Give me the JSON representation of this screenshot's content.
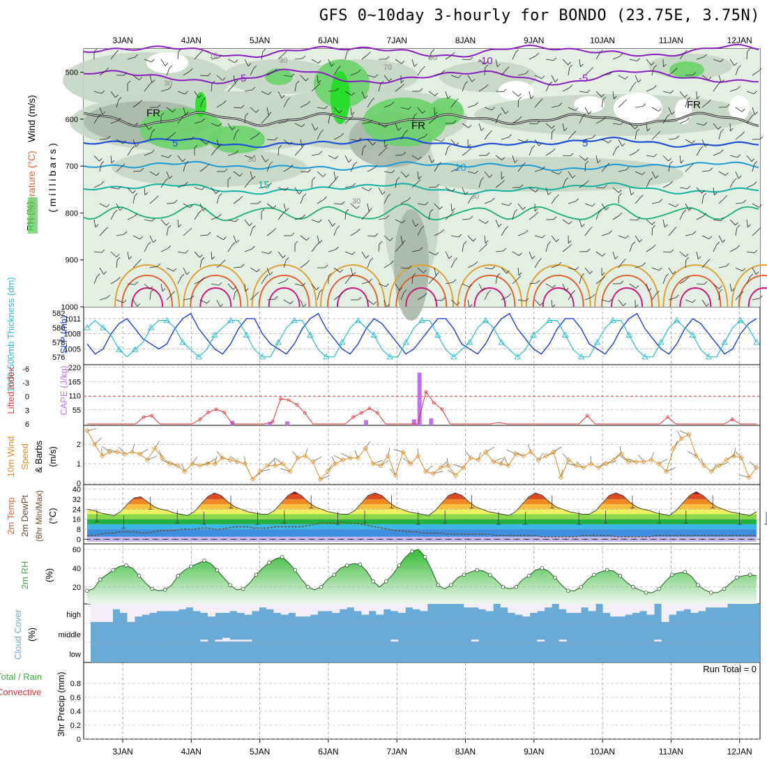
{
  "title": "GFS 0~10day 3-hourly for BONDO (23.75E, 3.75N)",
  "dates": [
    "3JAN",
    "4JAN",
    "5JAN",
    "6JAN",
    "7JAN",
    "8JAN",
    "9JAN",
    "10JAN",
    "11JAN",
    "12JAN"
  ],
  "colors": {
    "grid": "#999999",
    "rh_light": "#e3efe3",
    "rh_mid": "#c4d6c4",
    "rh_gray": "#a8b8a8",
    "rh_green": "#6ad36a",
    "rh_bright": "#22dd22",
    "purple": "#8a1dc0",
    "blue": "#1f4fd6",
    "lightblue": "#1c9ad6",
    "teal": "#14b0a0",
    "green_temp": "#18b070",
    "orange": "#e0a030",
    "orangered": "#e06030",
    "magenta": "#d0167a",
    "slp": "#1a3fd0",
    "thick": "#22bbcc",
    "li": "#e03030",
    "cape": "#c070f0",
    "wind": "#e08a20",
    "rh2m": "#3ab03a",
    "cloud": "#6aaad6",
    "cloud_clear": "#f3eef8"
  },
  "chart_data": [
    {
      "type": "contour",
      "panel": "upper-air",
      "ylabel_parts": [
        "RH (%)",
        "Temperature (°C)",
        "Wind (m/s)"
      ],
      "ylabel_unit": "( m i l l i b a r s )",
      "yticks": [
        500,
        600,
        700,
        800,
        900,
        1000
      ],
      "ylim": [
        1000,
        450
      ],
      "temperature_levels": [
        -10,
        -5,
        0,
        5,
        10,
        15,
        20,
        25,
        30
      ],
      "temperature_labels": [
        "-10",
        "-5",
        "FR",
        "5",
        "10",
        "15"
      ],
      "rh_labels": [
        "10",
        "30",
        "70",
        "90"
      ]
    },
    {
      "type": "line",
      "panel": "slp-thickness",
      "ylabel_left": "1000-500mb Thickness (dm)",
      "ylabel_right": "SLP (mb)",
      "yticks_left": [
        576,
        578,
        580,
        582
      ],
      "yticks_right": [
        1005,
        1008,
        1011
      ],
      "series": [
        {
          "name": "SLP",
          "values": [
            1006,
            1004,
            1005,
            1008,
            1010,
            1011,
            1009,
            1007,
            1006,
            1005,
            1006,
            1009,
            1011,
            1012,
            1009,
            1007,
            1005,
            1004,
            1006,
            1009,
            1011,
            1011,
            1008,
            1006,
            1005,
            1004,
            1006,
            1009,
            1011,
            1012,
            1009,
            1007,
            1005,
            1004,
            1006,
            1009,
            1011,
            1010,
            1008,
            1006,
            1004,
            1005,
            1007,
            1009,
            1011,
            1011,
            1009,
            1006,
            1005,
            1004,
            1006,
            1009,
            1011,
            1012,
            1009,
            1007,
            1005,
            1004,
            1006,
            1009,
            1011,
            1011,
            1009,
            1006,
            1005,
            1004,
            1006,
            1009,
            1011,
            1012,
            1009,
            1007,
            1005,
            1004,
            1006,
            1009,
            1011,
            1010,
            1008,
            1006,
            1004,
            1005,
            1008,
            1010,
            1011
          ]
        },
        {
          "name": "Thickness",
          "values": [
            580,
            581,
            580,
            579,
            577,
            576,
            577,
            578,
            580,
            581,
            581,
            580,
            578,
            577,
            576,
            577,
            579,
            580,
            581,
            581,
            579,
            577,
            576,
            576,
            578,
            580,
            581,
            581,
            579,
            577,
            576,
            576,
            578,
            580,
            581,
            580,
            579,
            577,
            576,
            576,
            578,
            580,
            581,
            581,
            579,
            577,
            576,
            577,
            578,
            580,
            581,
            580,
            578,
            577,
            576,
            577,
            579,
            580,
            581,
            581,
            579,
            577,
            576,
            576,
            578,
            580,
            581,
            581,
            579,
            577,
            576,
            576,
            578,
            580,
            581,
            580,
            579,
            577,
            576,
            576,
            578,
            580,
            581,
            580,
            578
          ]
        }
      ]
    },
    {
      "type": "bar+line",
      "panel": "lifted-cape",
      "ylabel_left": "Lifted Index",
      "ylabel_right": "CAPE (J/kg)",
      "yticks_left": [
        -6,
        -3,
        0,
        3,
        6
      ],
      "yticks_right": [
        55,
        110,
        165,
        220
      ],
      "series": [
        {
          "name": "Lifted Index",
          "values": [
            6,
            6,
            6,
            6,
            6,
            6,
            6,
            4.5,
            4.2,
            6,
            6,
            6,
            6,
            6,
            5,
            3.5,
            2.8,
            3.5,
            6,
            6,
            6,
            6,
            6,
            5.5,
            0.5,
            0.8,
            1.8,
            3.6,
            6,
            6,
            6,
            6,
            6,
            4.5,
            3.6,
            2.6,
            3.6,
            6,
            6,
            6,
            6,
            6,
            -1,
            1.4,
            2.8,
            6,
            6,
            6,
            6,
            6,
            6,
            5.7,
            6,
            6,
            6,
            6,
            6,
            6,
            6,
            6,
            6,
            6,
            4.2,
            6,
            6,
            6,
            6,
            6,
            6,
            6,
            6,
            6,
            4.5,
            6,
            6,
            6,
            6,
            6,
            6,
            6,
            5,
            6,
            6,
            6
          ]
        },
        {
          "name": "CAPE",
          "values": [
            0,
            0,
            0,
            0,
            0,
            0,
            0,
            0,
            0,
            0,
            0,
            0,
            0,
            0,
            0,
            0,
            0,
            0,
            0,
            0,
            0,
            0,
            0,
            0,
            0,
            0,
            0,
            0,
            0,
            0,
            0,
            0,
            0,
            0,
            0,
            0,
            0,
            0,
            0,
            0,
            0,
            0,
            0,
            0,
            0,
            0,
            0,
            0,
            0,
            0,
            0,
            0,
            0,
            0,
            0,
            0,
            0,
            0,
            0,
            0,
            0,
            0,
            0,
            0,
            0,
            0,
            0,
            0,
            0,
            0,
            0,
            0,
            0,
            0,
            0,
            0,
            0,
            0,
            0,
            0,
            0,
            0,
            0,
            0,
            0
          ]
        }
      ],
      "cape_bars": [
        [
          4.6,
          12
        ],
        [
          5.15,
          6
        ],
        [
          5.4,
          10
        ],
        [
          6.55,
          15
        ],
        [
          7.25,
          18
        ],
        [
          7.33,
          200
        ],
        [
          7.5,
          22
        ]
      ]
    },
    {
      "type": "line",
      "panel": "wind10m",
      "ylabel": "10m Wind Speed & Barbs (m/s)",
      "yticks": [
        0,
        1,
        2
      ],
      "series": [
        {
          "name": "Wind Speed",
          "values": [
            2.7,
            2.0,
            1.4,
            1.6,
            1.6,
            1.5,
            1.6,
            1.5,
            1.2,
            1.8,
            1.3,
            1.0,
            0.9,
            0.6,
            1.0,
            0.9,
            1.0,
            1.0,
            1.3,
            1.2,
            1.1,
            1.0,
            0.2,
            0.6,
            0.9,
            0.9,
            1.0,
            0.6,
            1.3,
            1.4,
            1.1,
            0.2,
            0.6,
            1.0,
            1.2,
            1.3,
            1.3,
            1.8,
            1.0,
            0.9,
            1.4,
            0.4,
            1.6,
            1.0,
            1.4,
            0.6,
            0.5,
            0.8,
            0.9,
            0.4,
            0.8,
            1.3,
            1.2,
            1.6,
            1.1,
            1.0,
            0.9,
            1.5,
            1.4,
            1.6,
            1.2,
            1.4,
            1.6,
            0.3,
            1.2,
            0.9,
            0.8,
            1.0,
            0.8,
            1.0,
            1.2,
            1.5,
            1.1,
            1.1,
            1.1,
            1.2,
            1.0,
            0.6,
            1.8,
            2.3,
            2.5,
            1.4,
            0.9,
            0.6,
            0.9,
            1.2,
            1.4,
            1.3,
            0.3,
            0.8
          ]
        }
      ]
    },
    {
      "type": "area",
      "panel": "temp2m",
      "ylabel": "2m Temp 2m DewPt (6hr Min/Max) (°C)",
      "yticks": [
        0,
        8,
        16,
        24,
        32,
        40
      ],
      "series": [
        {
          "name": "2m Temp",
          "values": [
            24,
            23,
            21,
            20,
            19,
            22,
            28,
            33,
            34,
            30,
            26,
            24,
            23,
            21,
            20,
            19,
            22,
            28,
            34,
            37,
            35,
            30,
            26,
            24,
            22,
            21,
            20,
            20,
            23,
            29,
            35,
            38,
            35,
            30,
            26,
            24,
            22,
            21,
            20,
            20,
            23,
            29,
            35,
            37,
            35,
            30,
            26,
            24,
            22,
            21,
            20,
            19,
            23,
            29,
            35,
            37,
            35,
            30,
            26,
            24,
            22,
            21,
            20,
            19,
            22,
            28,
            34,
            37,
            35,
            30,
            26,
            24,
            22,
            21,
            20,
            20,
            23,
            29,
            35,
            37,
            35,
            30,
            26,
            24,
            23,
            21,
            20,
            19,
            23,
            29,
            35,
            38,
            35,
            30,
            26,
            24,
            22,
            21,
            20,
            19,
            22
          ]
        },
        {
          "name": "2m DewPt",
          "values": [
            3,
            3,
            4,
            5,
            5,
            6,
            6,
            6,
            5,
            5,
            6,
            7,
            7,
            7,
            8,
            8,
            8,
            9,
            9,
            8,
            8,
            9,
            10,
            10,
            10,
            9,
            9,
            9,
            10,
            10,
            10,
            10,
            10,
            11,
            12,
            13,
            13,
            13,
            14,
            13,
            13,
            12,
            11,
            10,
            9,
            8,
            7,
            7,
            6,
            6,
            5,
            5,
            5,
            5,
            4,
            4,
            4,
            4,
            4,
            4,
            4,
            3,
            3,
            3,
            3,
            3,
            3,
            3,
            2,
            2,
            2,
            2,
            2,
            2,
            3,
            3,
            3,
            3,
            3,
            2,
            2,
            2,
            2,
            2,
            2,
            3,
            3,
            3,
            3,
            3,
            3,
            3,
            3,
            3,
            3,
            3,
            3,
            3,
            3,
            3,
            3
          ]
        }
      ]
    },
    {
      "type": "area",
      "panel": "rh2m",
      "ylabel": "2m RH (%)",
      "yticks": [
        20,
        40,
        60
      ],
      "series": [
        {
          "name": "2m RH",
          "values": [
            16,
            18,
            28,
            33,
            38,
            42,
            43,
            40,
            32,
            24,
            18,
            16,
            17,
            22,
            32,
            38,
            42,
            45,
            48,
            45,
            38,
            30,
            22,
            17,
            18,
            24,
            33,
            40,
            46,
            50,
            52,
            46,
            38,
            28,
            20,
            17,
            20,
            28,
            33,
            40,
            43,
            45,
            44,
            37,
            26,
            20,
            26,
            33,
            43,
            52,
            58,
            60,
            52,
            38,
            22,
            18,
            22,
            30,
            33,
            36,
            38,
            37,
            33,
            27,
            20,
            18,
            20,
            28,
            32,
            38,
            40,
            37,
            30,
            22,
            16,
            16,
            20,
            28,
            33,
            36,
            38,
            37,
            32,
            25,
            20,
            17,
            14,
            14,
            18,
            26,
            33,
            35,
            36,
            31,
            22,
            17,
            14,
            14,
            18,
            24,
            30,
            32,
            33,
            32
          ]
        }
      ]
    },
    {
      "type": "bar",
      "panel": "cloud-cover",
      "ylabel": "Cloud Cover (%)",
      "ytick_labels": [
        "high",
        "middle",
        "low"
      ],
      "series": [
        {
          "name": "high",
          "values": [
            0,
            0,
            0,
            70,
            50,
            0,
            30,
            40,
            50,
            60,
            60,
            60,
            70,
            80,
            60,
            50,
            30,
            50,
            50,
            60,
            50,
            40,
            60,
            80,
            70,
            50,
            40,
            50,
            30,
            30,
            40,
            60,
            60,
            50,
            70,
            80,
            60,
            40,
            60,
            40,
            70,
            60,
            50,
            80,
            70,
            60,
            100,
            100,
            100,
            100,
            100,
            80,
            80,
            70,
            60,
            100,
            80,
            50,
            40,
            30,
            50,
            60,
            80,
            100,
            70,
            50,
            50,
            80,
            60,
            100,
            50,
            30,
            30,
            40,
            50,
            60,
            40,
            100,
            0,
            40,
            60,
            70,
            50,
            60,
            80,
            80,
            80,
            100,
            100,
            100,
            100
          ]
        },
        {
          "name": "middle",
          "values": [
            100,
            100,
            100,
            100,
            100,
            100,
            100,
            100,
            100,
            100,
            100,
            100,
            100,
            100,
            100,
            90,
            100,
            90,
            80,
            90,
            90,
            90,
            100,
            100,
            100,
            100,
            100,
            100,
            100,
            100,
            100,
            100,
            100,
            100,
            100,
            100,
            100,
            100,
            100,
            100,
            100,
            90,
            100,
            100,
            100,
            100,
            100,
            100,
            100,
            100,
            100,
            100,
            90,
            100,
            100,
            100,
            100,
            100,
            100,
            100,
            100,
            90,
            100,
            100,
            90,
            100,
            100,
            100,
            100,
            100,
            100,
            100,
            100,
            100,
            100,
            100,
            100,
            90,
            100,
            100,
            100,
            100,
            100,
            100,
            100,
            100,
            100,
            100,
            100,
            100,
            100
          ]
        }
      ]
    },
    {
      "type": "bar",
      "panel": "precip",
      "ylabel_parts": [
        "Total / Rain",
        "Convective",
        "3hr Precip (mm)"
      ],
      "yticks": [
        0,
        0.2,
        0.4,
        0.6,
        0.8
      ],
      "annotation": "Run Total = 0",
      "series": []
    }
  ]
}
